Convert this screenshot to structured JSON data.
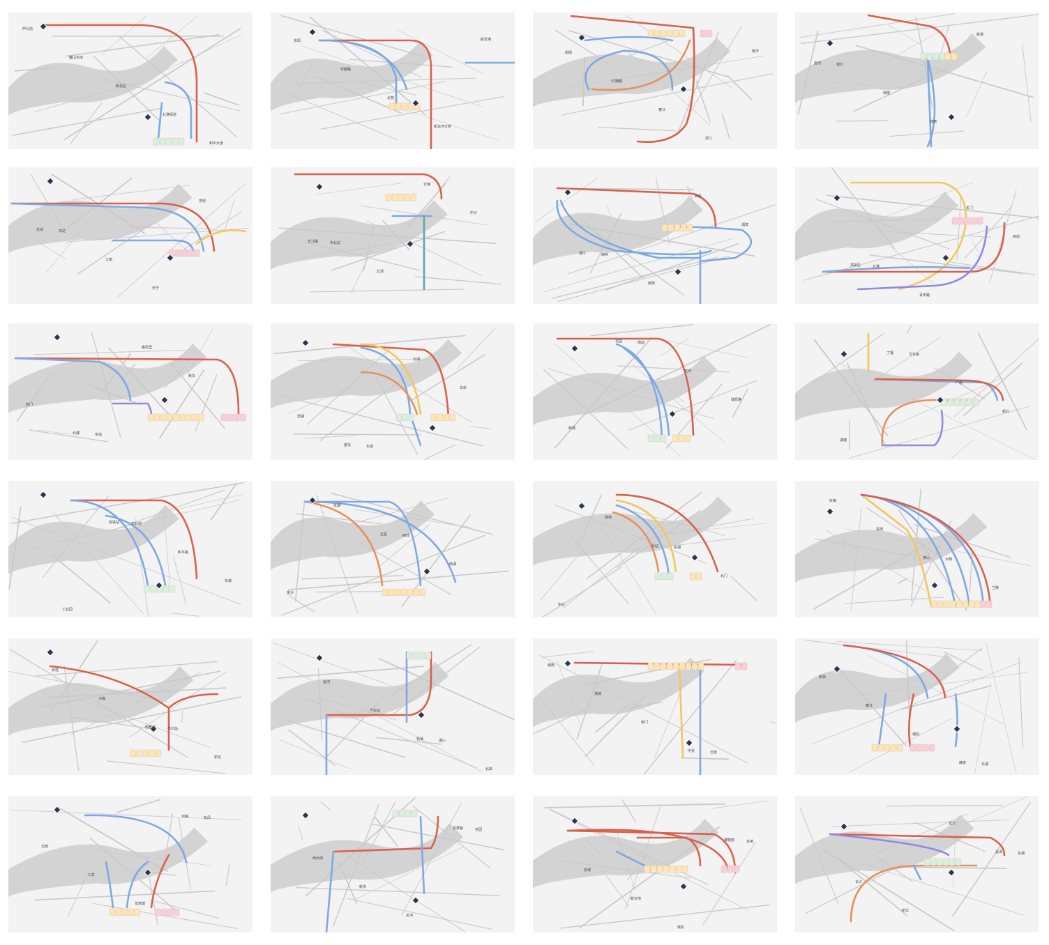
{
  "colors": {
    "map_bg": "#f3f3f3",
    "road": "#c9c9c9",
    "water": "#c8c8c8",
    "route_red": "#d9604c",
    "route_blue": "#7ea8e3",
    "route_orange": "#e6915a",
    "route_yellow": "#f2c75c",
    "route_purple": "#8f88e8",
    "route_teal": "#5fa9a6",
    "pin": "#2b3550",
    "badge_yellow": "#fbe7b3",
    "badge_green": "#d6f2dd",
    "badge_pink": "#f7cfd6"
  },
  "icons": {
    "station": "diamond-pin-icon",
    "badge": "stop-badge-icon"
  },
  "panels": [
    {
      "id": "p1",
      "labels": [
        "芦北站",
        "鹿山水库",
        "新北区",
        "北港街道",
        "和平大道"
      ]
    },
    {
      "id": "p2",
      "labels": [
        "东阳",
        "学都路",
        "北苑",
        "新运河大桥",
        "航空港"
      ]
    },
    {
      "id": "p3",
      "labels": [
        "南街",
        "红旗路",
        "春江",
        "滨江",
        "南洋"
      ]
    },
    {
      "id": "p4",
      "labels": [
        "城北",
        "钟楼",
        "城西",
        "新港",
        "运河"
      ]
    },
    {
      "id": "p5",
      "labels": [
        "东站",
        "江南",
        "天宁",
        "学府",
        "龙城"
      ]
    },
    {
      "id": "p6",
      "labels": [
        "市北站",
        "北郊",
        "云海",
        "中兴",
        "长江路"
      ]
    },
    {
      "id": "p7",
      "labels": [
        "西林",
        "南桥",
        "武进",
        "湖滨",
        "通江"
      ]
    },
    {
      "id": "p8",
      "labels": [
        "北港",
        "青年路",
        "东门",
        "西站",
        "高新区"
      ]
    },
    {
      "id": "p9",
      "labels": [
        "东站",
        "春风里",
        "新华",
        "西门",
        "北塘"
      ]
    },
    {
      "id": "p10",
      "labels": [
        "东城",
        "北湖",
        "华侨",
        "滨湖",
        "金坛"
      ]
    },
    {
      "id": "p11",
      "labels": [
        "南站",
        "北郊",
        "博爱路",
        "新城",
        "花园"
      ]
    },
    {
      "id": "p12",
      "labels": [
        "文化宫",
        "广场",
        "新北",
        "湖塘",
        "丁堰"
      ]
    },
    {
      "id": "p13",
      "labels": [
        "市北站",
        "和平路",
        "东坡",
        "工业园",
        "高铁站"
      ]
    },
    {
      "id": "p14",
      "labels": [
        "西郊",
        "南湖",
        "金沙",
        "东湖",
        "五星"
      ]
    },
    {
      "id": "p15",
      "labels": [
        "东湖",
        "北门",
        "中心",
        "南苑",
        "北站"
      ]
    },
    {
      "id": "p16",
      "labels": [
        "大明",
        "兰陵",
        "红梅",
        "清潭",
        "茶山"
      ]
    },
    {
      "id": "p17",
      "labels": [
        "市北站",
        "新龙",
        "长虹",
        "河海",
        "科教城"
      ]
    },
    {
      "id": "p18",
      "labels": [
        "湖心",
        "北岸",
        "运河",
        "汽车站",
        "机场"
      ]
    },
    {
      "id": "p19",
      "labels": [
        "北京",
        "城南",
        "淹城",
        "南门",
        "中吴"
      ]
    },
    {
      "id": "p20",
      "labels": [
        "东湖",
        "新桥",
        "春江",
        "浦前",
        "薛家"
      ]
    },
    {
      "id": "p21",
      "labels": [
        "东风",
        "北苑",
        "三井",
        "龙虎塘",
        "河海"
      ]
    },
    {
      "id": "p22",
      "labels": [
        "花园",
        "南大街",
        "新市",
        "关河",
        "青果巷"
      ]
    },
    {
      "id": "p23",
      "labels": [
        "东苑",
        "京城",
        "新天地",
        "城东",
        "博物馆"
      ]
    },
    {
      "id": "p24",
      "labels": [
        "东湖",
        "长江",
        "新北",
        "龙江",
        "嘉泽"
      ]
    }
  ]
}
